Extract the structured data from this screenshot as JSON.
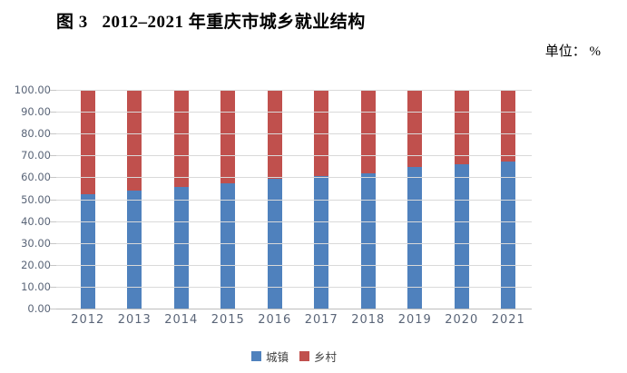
{
  "title": "图 3   2012–2021 年重庆市城乡就业结构",
  "unit_label": "单位： %",
  "chart_data": {
    "type": "bar",
    "stacked": true,
    "title": "图 3 2012–2021 年重庆市城乡就业结构",
    "unit": "%",
    "categories": [
      "2012",
      "2013",
      "2014",
      "2015",
      "2016",
      "2017",
      "2018",
      "2019",
      "2020",
      "2021"
    ],
    "series": [
      {
        "name": "城镇",
        "color": "#4F81BD",
        "values": [
          52.1,
          53.8,
          55.8,
          57.2,
          59.2,
          60.5,
          61.7,
          64.6,
          65.8,
          67.1
        ]
      },
      {
        "name": "乡村",
        "color": "#C0504D",
        "values": [
          47.9,
          46.2,
          44.2,
          42.8,
          40.8,
          39.5,
          38.3,
          35.4,
          34.2,
          32.9
        ]
      }
    ],
    "ylim": [
      0,
      100
    ],
    "ytick_step": 10,
    "yticks": [
      "100.00",
      "90.00",
      "80.00",
      "70.00",
      "60.00",
      "50.00",
      "40.00",
      "30.00",
      "20.00",
      "10.00",
      "0.00"
    ],
    "grid": true,
    "legend_position": "bottom",
    "colors": {
      "urban": "#4F81BD",
      "rural": "#C0504D",
      "gridline": "#d9d9d9",
      "axis_text": "#5a6578"
    }
  }
}
